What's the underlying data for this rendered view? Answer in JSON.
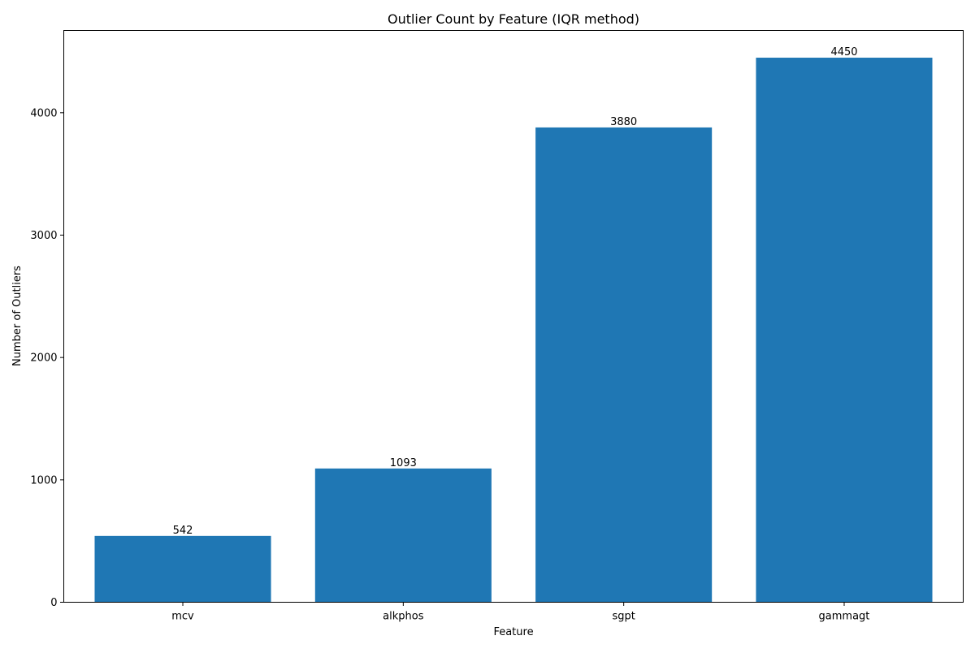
{
  "chart_data": {
    "type": "bar",
    "title": "Outlier Count by Feature (IQR method)",
    "xlabel": "Feature",
    "ylabel": "Number of Outliers",
    "categories": [
      "mcv",
      "alkphos",
      "sgpt",
      "gammagt"
    ],
    "values": [
      542,
      1093,
      3880,
      4450
    ],
    "data_labels": [
      "542",
      "1093",
      "3880",
      "4450"
    ],
    "ylim": [
      0,
      4672.5
    ],
    "yticks": [
      0,
      1000,
      2000,
      3000,
      4000
    ],
    "ytick_labels": [
      "0",
      "1000",
      "2000",
      "3000",
      "4000"
    ],
    "bar_color": "#1f77b4",
    "grid": false,
    "legend": "none"
  }
}
